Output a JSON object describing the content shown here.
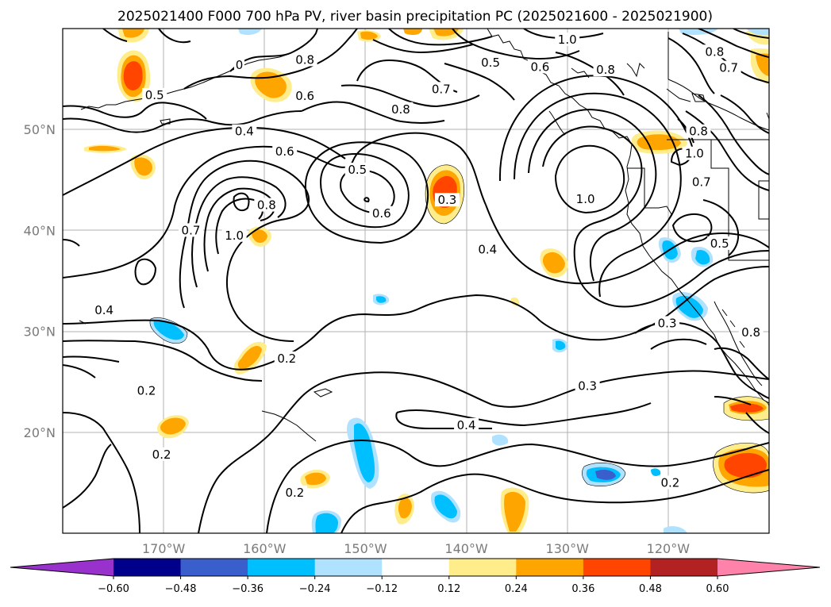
{
  "title": "2025021400 F000 700 hPa PV, river basin precipitation PC (2025021600 - 2025021900)",
  "map": {
    "lon_range": [
      -180,
      -110
    ],
    "lat_range": [
      10,
      60
    ],
    "lon_ticks": [
      {
        "value": -170,
        "label": "170°W"
      },
      {
        "value": -160,
        "label": "160°W"
      },
      {
        "value": -150,
        "label": "150°W"
      },
      {
        "value": -140,
        "label": "140°W"
      },
      {
        "value": -130,
        "label": "130°W"
      },
      {
        "value": -120,
        "label": "120°W"
      }
    ],
    "lat_ticks": [
      {
        "value": 20,
        "label": "20°N"
      },
      {
        "value": 30,
        "label": "30°N"
      },
      {
        "value": 40,
        "label": "40°N"
      },
      {
        "value": 50,
        "label": "50°N"
      }
    ],
    "gridlines": true,
    "contour_variable": "700 hPa PV",
    "contour_labels": [
      {
        "text": "0.5",
        "lon": -170.9,
        "lat": 53.4
      },
      {
        "text": "0.6",
        "lon": -156.0,
        "lat": 53.3
      },
      {
        "text": "0.8",
        "lon": -156.0,
        "lat": 56.9
      },
      {
        "text": "0",
        "lon": -162.5,
        "lat": 56.4
      },
      {
        "text": "0.4",
        "lon": -162.0,
        "lat": 49.8
      },
      {
        "text": "0.6",
        "lon": -158.0,
        "lat": 47.8
      },
      {
        "text": "0.5",
        "lon": -150.8,
        "lat": 46.0
      },
      {
        "text": "0.8",
        "lon": -146.5,
        "lat": 52.0
      },
      {
        "text": "0.7",
        "lon": -142.5,
        "lat": 54.0
      },
      {
        "text": "0.5",
        "lon": -137.6,
        "lat": 56.6
      },
      {
        "text": "0.6",
        "lon": -132.7,
        "lat": 56.2
      },
      {
        "text": "1.0",
        "lon": -130.0,
        "lat": 58.9
      },
      {
        "text": "0.8",
        "lon": -126.2,
        "lat": 55.9
      },
      {
        "text": "0.8",
        "lon": -115.4,
        "lat": 57.7
      },
      {
        "text": "0.7",
        "lon": -114.0,
        "lat": 56.1
      },
      {
        "text": "0.8",
        "lon": -117.0,
        "lat": 49.8
      },
      {
        "text": "1.0",
        "lon": -117.4,
        "lat": 47.6
      },
      {
        "text": "0.7",
        "lon": -116.7,
        "lat": 44.8
      },
      {
        "text": "1.0",
        "lon": -128.2,
        "lat": 43.1
      },
      {
        "text": "0.5",
        "lon": -114.9,
        "lat": 38.7
      },
      {
        "text": "0.6",
        "lon": -148.4,
        "lat": 41.7
      },
      {
        "text": "0.3",
        "lon": -141.9,
        "lat": 43.0
      },
      {
        "text": "0.8",
        "lon": -159.8,
        "lat": 42.5
      },
      {
        "text": "1.0",
        "lon": -163.0,
        "lat": 39.5
      },
      {
        "text": "0.7",
        "lon": -167.3,
        "lat": 40.0
      },
      {
        "text": "0.4",
        "lon": -137.9,
        "lat": 38.1
      },
      {
        "text": "0.3",
        "lon": -120.1,
        "lat": 30.8
      },
      {
        "text": "0.4",
        "lon": -175.9,
        "lat": 32.1
      },
      {
        "text": "0.2",
        "lon": -157.8,
        "lat": 27.3
      },
      {
        "text": "0.2",
        "lon": -171.7,
        "lat": 24.1
      },
      {
        "text": "0.3",
        "lon": -128.0,
        "lat": 24.6
      },
      {
        "text": "0.4",
        "lon": -140.0,
        "lat": 20.7
      },
      {
        "text": "0.2",
        "lon": -170.2,
        "lat": 17.8
      },
      {
        "text": "0.2",
        "lon": -157.0,
        "lat": 14.0
      },
      {
        "text": "0.2",
        "lon": -119.8,
        "lat": 15.0
      },
      {
        "text": "0.8",
        "lon": -111.8,
        "lat": 29.9
      }
    ],
    "shading_variable": "river basin precipitation PC",
    "shaded_features": [
      {
        "lon": -173.0,
        "lat": 55.5,
        "value": 0.4
      },
      {
        "lon": -158.5,
        "lat": 55.0,
        "value": 0.3
      },
      {
        "lon": -142.0,
        "lat": 44.0,
        "value": 0.42
      },
      {
        "lon": -122.0,
        "lat": 49.0,
        "value": 0.3
      },
      {
        "lon": -111.0,
        "lat": 15.2,
        "value": 0.4
      },
      {
        "lon": -110.8,
        "lat": 22.0,
        "value": 0.3
      },
      {
        "lon": -150.0,
        "lat": 17.5,
        "value": -0.3
      },
      {
        "lon": -123.5,
        "lat": 15.5,
        "value": -0.32
      },
      {
        "lon": -117.5,
        "lat": 32.5,
        "value": -0.3
      },
      {
        "lon": -140.0,
        "lat": 13.0,
        "value": -0.3
      }
    ]
  },
  "colorbar": {
    "colors": [
      "#9932cc",
      "#00008b",
      "#3a5fcd",
      "#00bfff",
      "#b0e2ff",
      "#ffffff",
      "#ffec8b",
      "#ffa500",
      "#ff4500",
      "#b22222",
      "#ff82ab"
    ],
    "bounds": [
      -0.6,
      -0.48,
      -0.36,
      -0.24,
      -0.12,
      0.12,
      0.24,
      0.36,
      0.48,
      0.6
    ],
    "tick_labels": [
      "−0.60",
      "−0.48",
      "−0.36",
      "−0.24",
      "−0.12",
      "0.12",
      "0.24",
      "0.36",
      "0.48",
      "0.60"
    ],
    "extend": "both"
  }
}
